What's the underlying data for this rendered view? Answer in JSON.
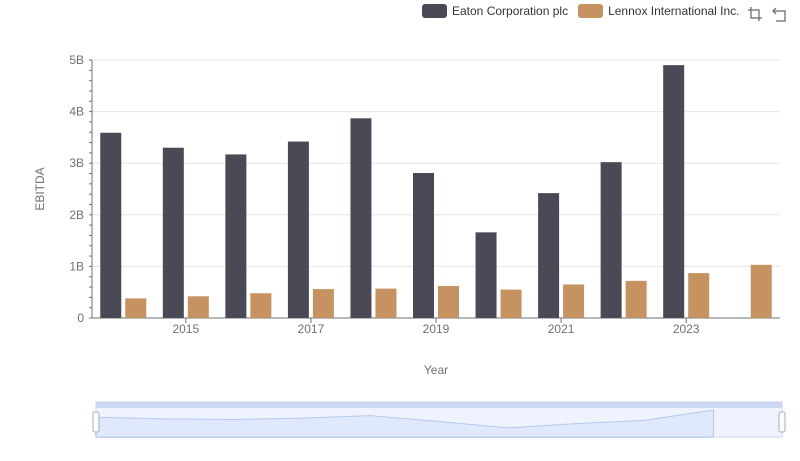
{
  "legend": {
    "series_a": "Eaton Corporation plc",
    "series_b": "Lennox International Inc."
  },
  "toolbox": [
    "zoom-icon",
    "restore-icon"
  ],
  "colors": {
    "series_a": "#4a4a56",
    "series_b": "#c59260",
    "grid": "#e6e6e6",
    "axis": "#6e7079",
    "zoom_fill": "#dfe8fb",
    "zoom_border": "#c5d3ee"
  },
  "chart_data": {
    "type": "bar",
    "xlabel": "Year",
    "ylabel": "EBITDA",
    "ylim": [
      0,
      5000000000
    ],
    "yticks": [
      "0",
      "1B",
      "2B",
      "3B",
      "4B",
      "5B"
    ],
    "xtick_labels": [
      "2015",
      "2017",
      "2019",
      "2021",
      "2023"
    ],
    "categories": [
      "2014",
      "2015",
      "2016",
      "2017",
      "2018",
      "2019",
      "2020",
      "2021",
      "2022",
      "2023",
      "2024"
    ],
    "grid": "horizontal",
    "legend_position": "top-right",
    "series": [
      {
        "name": "Eaton Corporation plc",
        "values": [
          3590000000,
          3300000000,
          3170000000,
          3420000000,
          3870000000,
          2810000000,
          1660000000,
          2420000000,
          3020000000,
          4900000000,
          null
        ]
      },
      {
        "name": "Lennox International Inc.",
        "values": [
          380000000,
          420000000,
          480000000,
          560000000,
          570000000,
          620000000,
          550000000,
          650000000,
          720000000,
          870000000,
          1030000000
        ]
      }
    ]
  }
}
